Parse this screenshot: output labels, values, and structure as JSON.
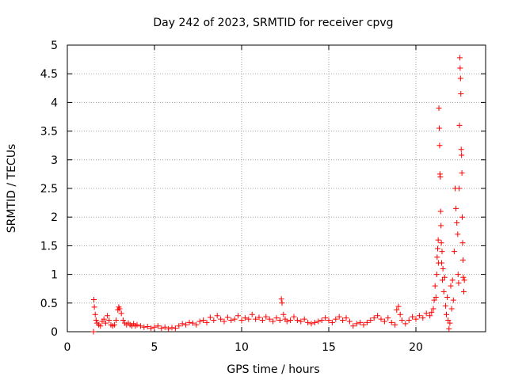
{
  "chart_data": {
    "type": "scatter",
    "title": "Day 242 of 2023, SRMTID for receiver cpvg",
    "xlabel": "GPS time / hours",
    "ylabel": "SRMTID / TECUs",
    "xlim": [
      0,
      24
    ],
    "ylim": [
      0,
      5
    ],
    "x_ticks": [
      0,
      5,
      10,
      15,
      20
    ],
    "x_tick_labels": [
      "0",
      "5",
      "10",
      "15",
      "20"
    ],
    "y_ticks": [
      0,
      0.5,
      1,
      1.5,
      2,
      2.5,
      3,
      3.5,
      4,
      4.5,
      5
    ],
    "y_tick_labels": [
      "0",
      "0.5",
      "1",
      "1.5",
      "2",
      "2.5",
      "3",
      "3.5",
      "4",
      "4.5",
      "5"
    ],
    "grid": true,
    "marker": "plus",
    "series": [
      {
        "name": "SRMTID",
        "color": "#ff0000",
        "points": [
          [
            1.5,
            0.0
          ],
          [
            1.52,
            0.56
          ],
          [
            1.55,
            0.43
          ],
          [
            1.6,
            0.3
          ],
          [
            1.65,
            0.2
          ],
          [
            1.7,
            0.15
          ],
          [
            1.8,
            0.12
          ],
          [
            1.9,
            0.1
          ],
          [
            2.0,
            0.18
          ],
          [
            2.1,
            0.22
          ],
          [
            2.2,
            0.15
          ],
          [
            2.3,
            0.28
          ],
          [
            2.4,
            0.2
          ],
          [
            2.5,
            0.12
          ],
          [
            2.6,
            0.1
          ],
          [
            2.7,
            0.12
          ],
          [
            2.8,
            0.2
          ],
          [
            2.9,
            0.38
          ],
          [
            2.95,
            0.43
          ],
          [
            3.0,
            0.4
          ],
          [
            3.1,
            0.32
          ],
          [
            3.2,
            0.2
          ],
          [
            3.3,
            0.15
          ],
          [
            3.4,
            0.12
          ],
          [
            3.5,
            0.15
          ],
          [
            3.6,
            0.12
          ],
          [
            3.7,
            0.1
          ],
          [
            3.8,
            0.14
          ],
          [
            3.9,
            0.1
          ],
          [
            4.0,
            0.12
          ],
          [
            4.2,
            0.1
          ],
          [
            4.4,
            0.08
          ],
          [
            4.6,
            0.09
          ],
          [
            4.8,
            0.06
          ],
          [
            5.0,
            0.08
          ],
          [
            5.2,
            0.1
          ],
          [
            5.4,
            0.06
          ],
          [
            5.6,
            0.08
          ],
          [
            5.8,
            0.05
          ],
          [
            6.0,
            0.07
          ],
          [
            6.2,
            0.06
          ],
          [
            6.4,
            0.1
          ],
          [
            6.6,
            0.14
          ],
          [
            6.8,
            0.12
          ],
          [
            7.0,
            0.16
          ],
          [
            7.2,
            0.15
          ],
          [
            7.4,
            0.12
          ],
          [
            7.6,
            0.18
          ],
          [
            7.8,
            0.2
          ],
          [
            8.0,
            0.16
          ],
          [
            8.2,
            0.25
          ],
          [
            8.4,
            0.2
          ],
          [
            8.6,
            0.28
          ],
          [
            8.8,
            0.22
          ],
          [
            9.0,
            0.18
          ],
          [
            9.2,
            0.25
          ],
          [
            9.4,
            0.2
          ],
          [
            9.6,
            0.22
          ],
          [
            9.8,
            0.28
          ],
          [
            10.0,
            0.2
          ],
          [
            10.2,
            0.24
          ],
          [
            10.4,
            0.22
          ],
          [
            10.6,
            0.3
          ],
          [
            10.8,
            0.22
          ],
          [
            11.0,
            0.25
          ],
          [
            11.2,
            0.2
          ],
          [
            11.4,
            0.26
          ],
          [
            11.6,
            0.22
          ],
          [
            11.8,
            0.18
          ],
          [
            12.0,
            0.24
          ],
          [
            12.2,
            0.2
          ],
          [
            12.28,
            0.57
          ],
          [
            12.32,
            0.5
          ],
          [
            12.4,
            0.3
          ],
          [
            12.5,
            0.22
          ],
          [
            12.6,
            0.18
          ],
          [
            12.8,
            0.2
          ],
          [
            13.0,
            0.26
          ],
          [
            13.2,
            0.2
          ],
          [
            13.4,
            0.18
          ],
          [
            13.6,
            0.22
          ],
          [
            13.8,
            0.16
          ],
          [
            14.0,
            0.14
          ],
          [
            14.2,
            0.16
          ],
          [
            14.4,
            0.18
          ],
          [
            14.6,
            0.2
          ],
          [
            14.8,
            0.24
          ],
          [
            15.0,
            0.2
          ],
          [
            15.2,
            0.16
          ],
          [
            15.4,
            0.22
          ],
          [
            15.6,
            0.26
          ],
          [
            15.8,
            0.2
          ],
          [
            16.0,
            0.24
          ],
          [
            16.2,
            0.18
          ],
          [
            16.4,
            0.1
          ],
          [
            16.6,
            0.14
          ],
          [
            16.8,
            0.16
          ],
          [
            17.0,
            0.12
          ],
          [
            17.2,
            0.16
          ],
          [
            17.4,
            0.2
          ],
          [
            17.6,
            0.24
          ],
          [
            17.8,
            0.28
          ],
          [
            18.0,
            0.22
          ],
          [
            18.2,
            0.18
          ],
          [
            18.4,
            0.24
          ],
          [
            18.6,
            0.16
          ],
          [
            18.8,
            0.12
          ],
          [
            18.9,
            0.38
          ],
          [
            19.0,
            0.44
          ],
          [
            19.1,
            0.3
          ],
          [
            19.2,
            0.2
          ],
          [
            19.4,
            0.14
          ],
          [
            19.6,
            0.2
          ],
          [
            19.8,
            0.26
          ],
          [
            20.0,
            0.22
          ],
          [
            20.2,
            0.28
          ],
          [
            20.4,
            0.24
          ],
          [
            20.6,
            0.32
          ],
          [
            20.8,
            0.28
          ],
          [
            20.9,
            0.34
          ],
          [
            21.0,
            0.4
          ],
          [
            21.05,
            0.55
          ],
          [
            21.1,
            0.8
          ],
          [
            21.15,
            0.6
          ],
          [
            21.2,
            1.0
          ],
          [
            21.22,
            1.3
          ],
          [
            21.25,
            1.45
          ],
          [
            21.28,
            1.6
          ],
          [
            21.3,
            1.2
          ],
          [
            21.32,
            3.9
          ],
          [
            21.34,
            3.55
          ],
          [
            21.36,
            3.25
          ],
          [
            21.38,
            2.75
          ],
          [
            21.4,
            2.7
          ],
          [
            21.42,
            2.1
          ],
          [
            21.44,
            1.85
          ],
          [
            21.46,
            1.55
          ],
          [
            21.48,
            1.2
          ],
          [
            21.5,
            1.4
          ],
          [
            21.52,
            0.9
          ],
          [
            21.55,
            1.1
          ],
          [
            21.6,
            0.7
          ],
          [
            21.65,
            0.95
          ],
          [
            21.7,
            0.45
          ],
          [
            21.75,
            0.3
          ],
          [
            21.8,
            0.6
          ],
          [
            21.85,
            0.2
          ],
          [
            21.9,
            0.05
          ],
          [
            21.95,
            0.15
          ],
          [
            22.0,
            0.8
          ],
          [
            22.05,
            0.4
          ],
          [
            22.1,
            0.9
          ],
          [
            22.15,
            0.55
          ],
          [
            22.2,
            1.4
          ],
          [
            22.25,
            2.5
          ],
          [
            22.3,
            2.15
          ],
          [
            22.35,
            1.9
          ],
          [
            22.4,
            1.7
          ],
          [
            22.42,
            1.0
          ],
          [
            22.45,
            0.85
          ],
          [
            22.48,
            2.5
          ],
          [
            22.5,
            3.6
          ],
          [
            22.52,
            4.78
          ],
          [
            22.54,
            4.6
          ],
          [
            22.56,
            4.42
          ],
          [
            22.58,
            4.15
          ],
          [
            22.6,
            3.18
          ],
          [
            22.62,
            3.08
          ],
          [
            22.64,
            2.77
          ],
          [
            22.66,
            2.0
          ],
          [
            22.68,
            1.55
          ],
          [
            22.7,
            1.25
          ],
          [
            22.72,
            0.95
          ],
          [
            22.75,
            0.7
          ],
          [
            22.78,
            0.9
          ]
        ]
      }
    ]
  }
}
